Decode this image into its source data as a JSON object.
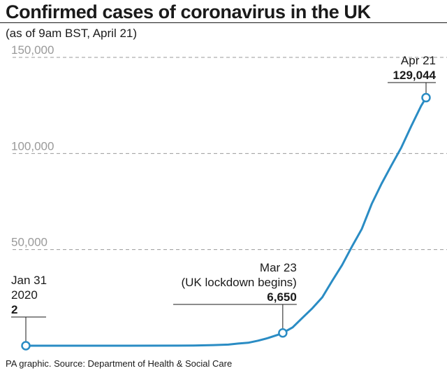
{
  "chart_data": {
    "type": "line",
    "title": "Confirmed cases of coronavirus in the UK",
    "subtitle": "(as of 9am BST, April 21)",
    "source": "PA graphic. Source: Department of Health & Social Care",
    "ylim": [
      0,
      150000
    ],
    "yticks": [
      {
        "value": 150000,
        "label": "150,000"
      },
      {
        "value": 100000,
        "label": "100,000"
      },
      {
        "value": 50000,
        "label": "50,000"
      }
    ],
    "grid": true,
    "series_color": "#2a8cc4",
    "points": [
      {
        "x": "2020-01-31",
        "y": 2
      },
      {
        "x": "2020-02-20",
        "y": 9
      },
      {
        "x": "2020-03-01",
        "y": 35
      },
      {
        "x": "2020-03-05",
        "y": 115
      },
      {
        "x": "2020-03-09",
        "y": 319
      },
      {
        "x": "2020-03-12",
        "y": 590
      },
      {
        "x": "2020-03-14",
        "y": 1140
      },
      {
        "x": "2020-03-16",
        "y": 1543
      },
      {
        "x": "2020-03-18",
        "y": 2626
      },
      {
        "x": "2020-03-20",
        "y": 3983
      },
      {
        "x": "2020-03-22",
        "y": 5683
      },
      {
        "x": "2020-03-23",
        "y": 6650
      },
      {
        "x": "2020-03-25",
        "y": 9529
      },
      {
        "x": "2020-03-27",
        "y": 14543
      },
      {
        "x": "2020-03-29",
        "y": 19522
      },
      {
        "x": "2020-03-31",
        "y": 25150
      },
      {
        "x": "2020-04-02",
        "y": 33718
      },
      {
        "x": "2020-04-04",
        "y": 41903
      },
      {
        "x": "2020-04-06",
        "y": 51608
      },
      {
        "x": "2020-04-08",
        "y": 60733
      },
      {
        "x": "2020-04-10",
        "y": 73758
      },
      {
        "x": "2020-04-12",
        "y": 84279
      },
      {
        "x": "2020-04-14",
        "y": 93873
      },
      {
        "x": "2020-04-16",
        "y": 103093
      },
      {
        "x": "2020-04-18",
        "y": 114217
      },
      {
        "x": "2020-04-20",
        "y": 124743
      },
      {
        "x": "2020-04-21",
        "y": 129044
      }
    ],
    "annotations": [
      {
        "x": "2020-01-31",
        "y": 2,
        "lines": [
          "Jan 31",
          "2020"
        ],
        "value": "2",
        "align": "left"
      },
      {
        "x": "2020-03-23",
        "y": 6650,
        "lines": [
          "Mar 23",
          "(UK lockdown begins)"
        ],
        "value": "6,650",
        "align": "right"
      },
      {
        "x": "2020-04-21",
        "y": 129044,
        "lines": [
          "Apr 21"
        ],
        "value": "129,044",
        "align": "right"
      }
    ]
  }
}
